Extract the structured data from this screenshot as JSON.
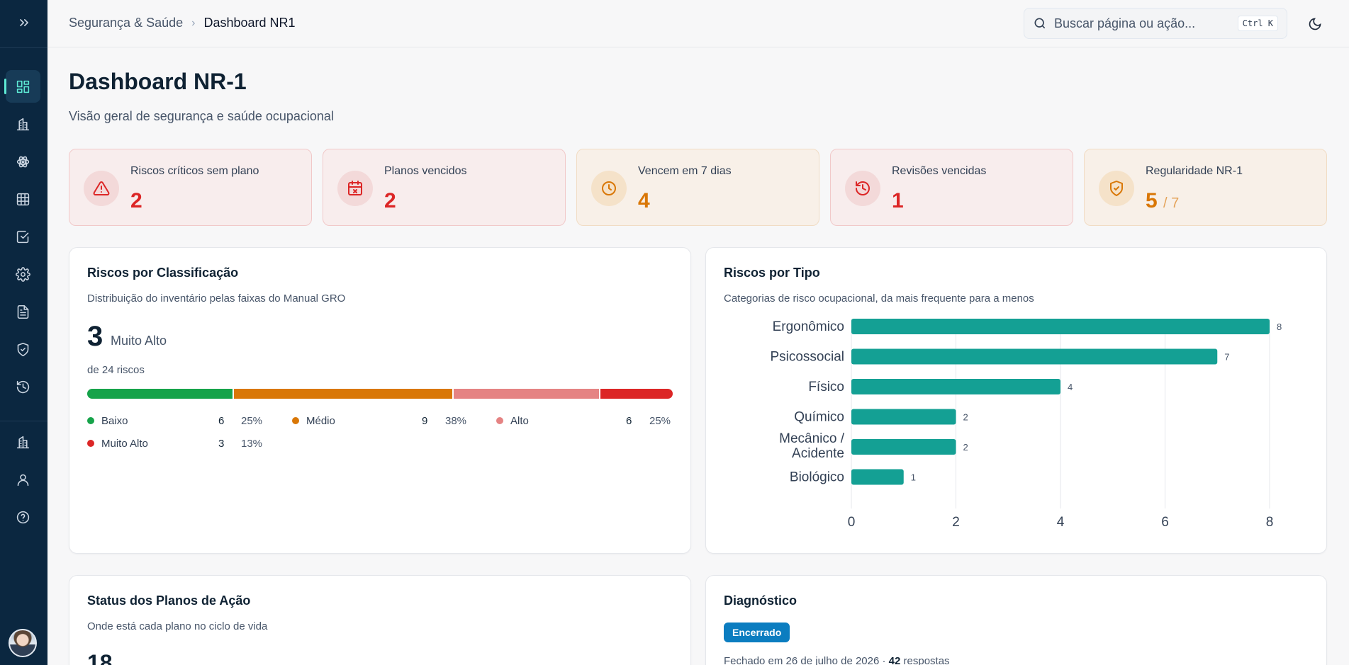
{
  "sidebar": {
    "toggle_icon": "chevrons-right-icon",
    "items": [
      {
        "name": "dashboard",
        "icon": "layout-dashboard-icon",
        "active": true
      },
      {
        "name": "empresas",
        "icon": "building-icon"
      },
      {
        "name": "riscos",
        "icon": "atom-icon"
      },
      {
        "name": "matriz",
        "icon": "grid-icon"
      },
      {
        "name": "planos",
        "icon": "check-square-icon"
      },
      {
        "name": "config",
        "icon": "gear-icon"
      },
      {
        "name": "documentos",
        "icon": "file-text-icon"
      },
      {
        "name": "seguranca",
        "icon": "shield-icon"
      },
      {
        "name": "historico",
        "icon": "history-icon"
      },
      {
        "name": "organizacao",
        "icon": "building-icon"
      },
      {
        "name": "usuario",
        "icon": "user-icon"
      },
      {
        "name": "ajuda",
        "icon": "help-circle-icon"
      }
    ]
  },
  "header": {
    "breadcrumb_parent": "Segurança & Saúde",
    "breadcrumb_current": "Dashboard NR1",
    "search_placeholder": "Buscar página ou ação...",
    "search_shortcut": "Ctrl K"
  },
  "page": {
    "title": "Dashboard NR-1",
    "subtitle": "Visão geral de segurança e saúde ocupacional"
  },
  "kpis": [
    {
      "label": "Riscos críticos sem plano",
      "value": "2",
      "tone": "red",
      "icon": "alert-triangle-icon"
    },
    {
      "label": "Planos vencidos",
      "value": "2",
      "tone": "red",
      "icon": "calendar-x-icon"
    },
    {
      "label": "Vencem em 7 dias",
      "value": "4",
      "tone": "amber",
      "icon": "clock-icon"
    },
    {
      "label": "Revisões vencidas",
      "value": "1",
      "tone": "red",
      "icon": "history-icon"
    },
    {
      "label": "Regularidade NR-1",
      "value": "5",
      "suffix": "/ 7",
      "tone": "amber",
      "icon": "shield-check-icon"
    }
  ],
  "classificacao": {
    "title": "Riscos por Classificação",
    "subtitle": "Distribuição do inventário pelas faixas do Manual GRO",
    "highlight_value": "3",
    "highlight_label": "Muito Alto",
    "total_label": "de 24 riscos",
    "segments": [
      {
        "label": "Baixo",
        "count": "6",
        "pct": "25%",
        "share": 25,
        "color": "#16a34a"
      },
      {
        "label": "Médio",
        "count": "9",
        "pct": "38%",
        "share": 37.5,
        "color": "#d97706"
      },
      {
        "label": "Alto",
        "count": "6",
        "pct": "25%",
        "share": 25,
        "color": "#e58383"
      },
      {
        "label": "Muito Alto",
        "count": "3",
        "pct": "13%",
        "share": 12.5,
        "color": "#dc2626"
      }
    ]
  },
  "tipo": {
    "title": "Riscos por Tipo",
    "subtitle": "Categorias de risco ocupacional, da mais frequente para a menos"
  },
  "chart_data": {
    "type": "bar",
    "orientation": "horizontal",
    "categories": [
      "Ergonômico",
      "Psicossocial",
      "Físico",
      "Químico",
      "Mecânico / Acidente",
      "Biológico"
    ],
    "values": [
      8,
      7,
      4,
      2,
      2,
      1
    ],
    "xlim": [
      0,
      8
    ],
    "xticks": [
      0,
      2,
      4,
      6,
      8
    ],
    "grid": true,
    "bar_color": "#14a094",
    "data_labels": true
  },
  "status_planos": {
    "title": "Status dos Planos de Ação",
    "subtitle": "Onde está cada plano no ciclo de vida",
    "total": "18"
  },
  "diagnostico": {
    "title": "Diagnóstico",
    "badge": "Encerrado",
    "meta_prefix": "Fechado em 26 de julho de 2026 · ",
    "responses_count": "42",
    "responses_label": " respostas"
  }
}
